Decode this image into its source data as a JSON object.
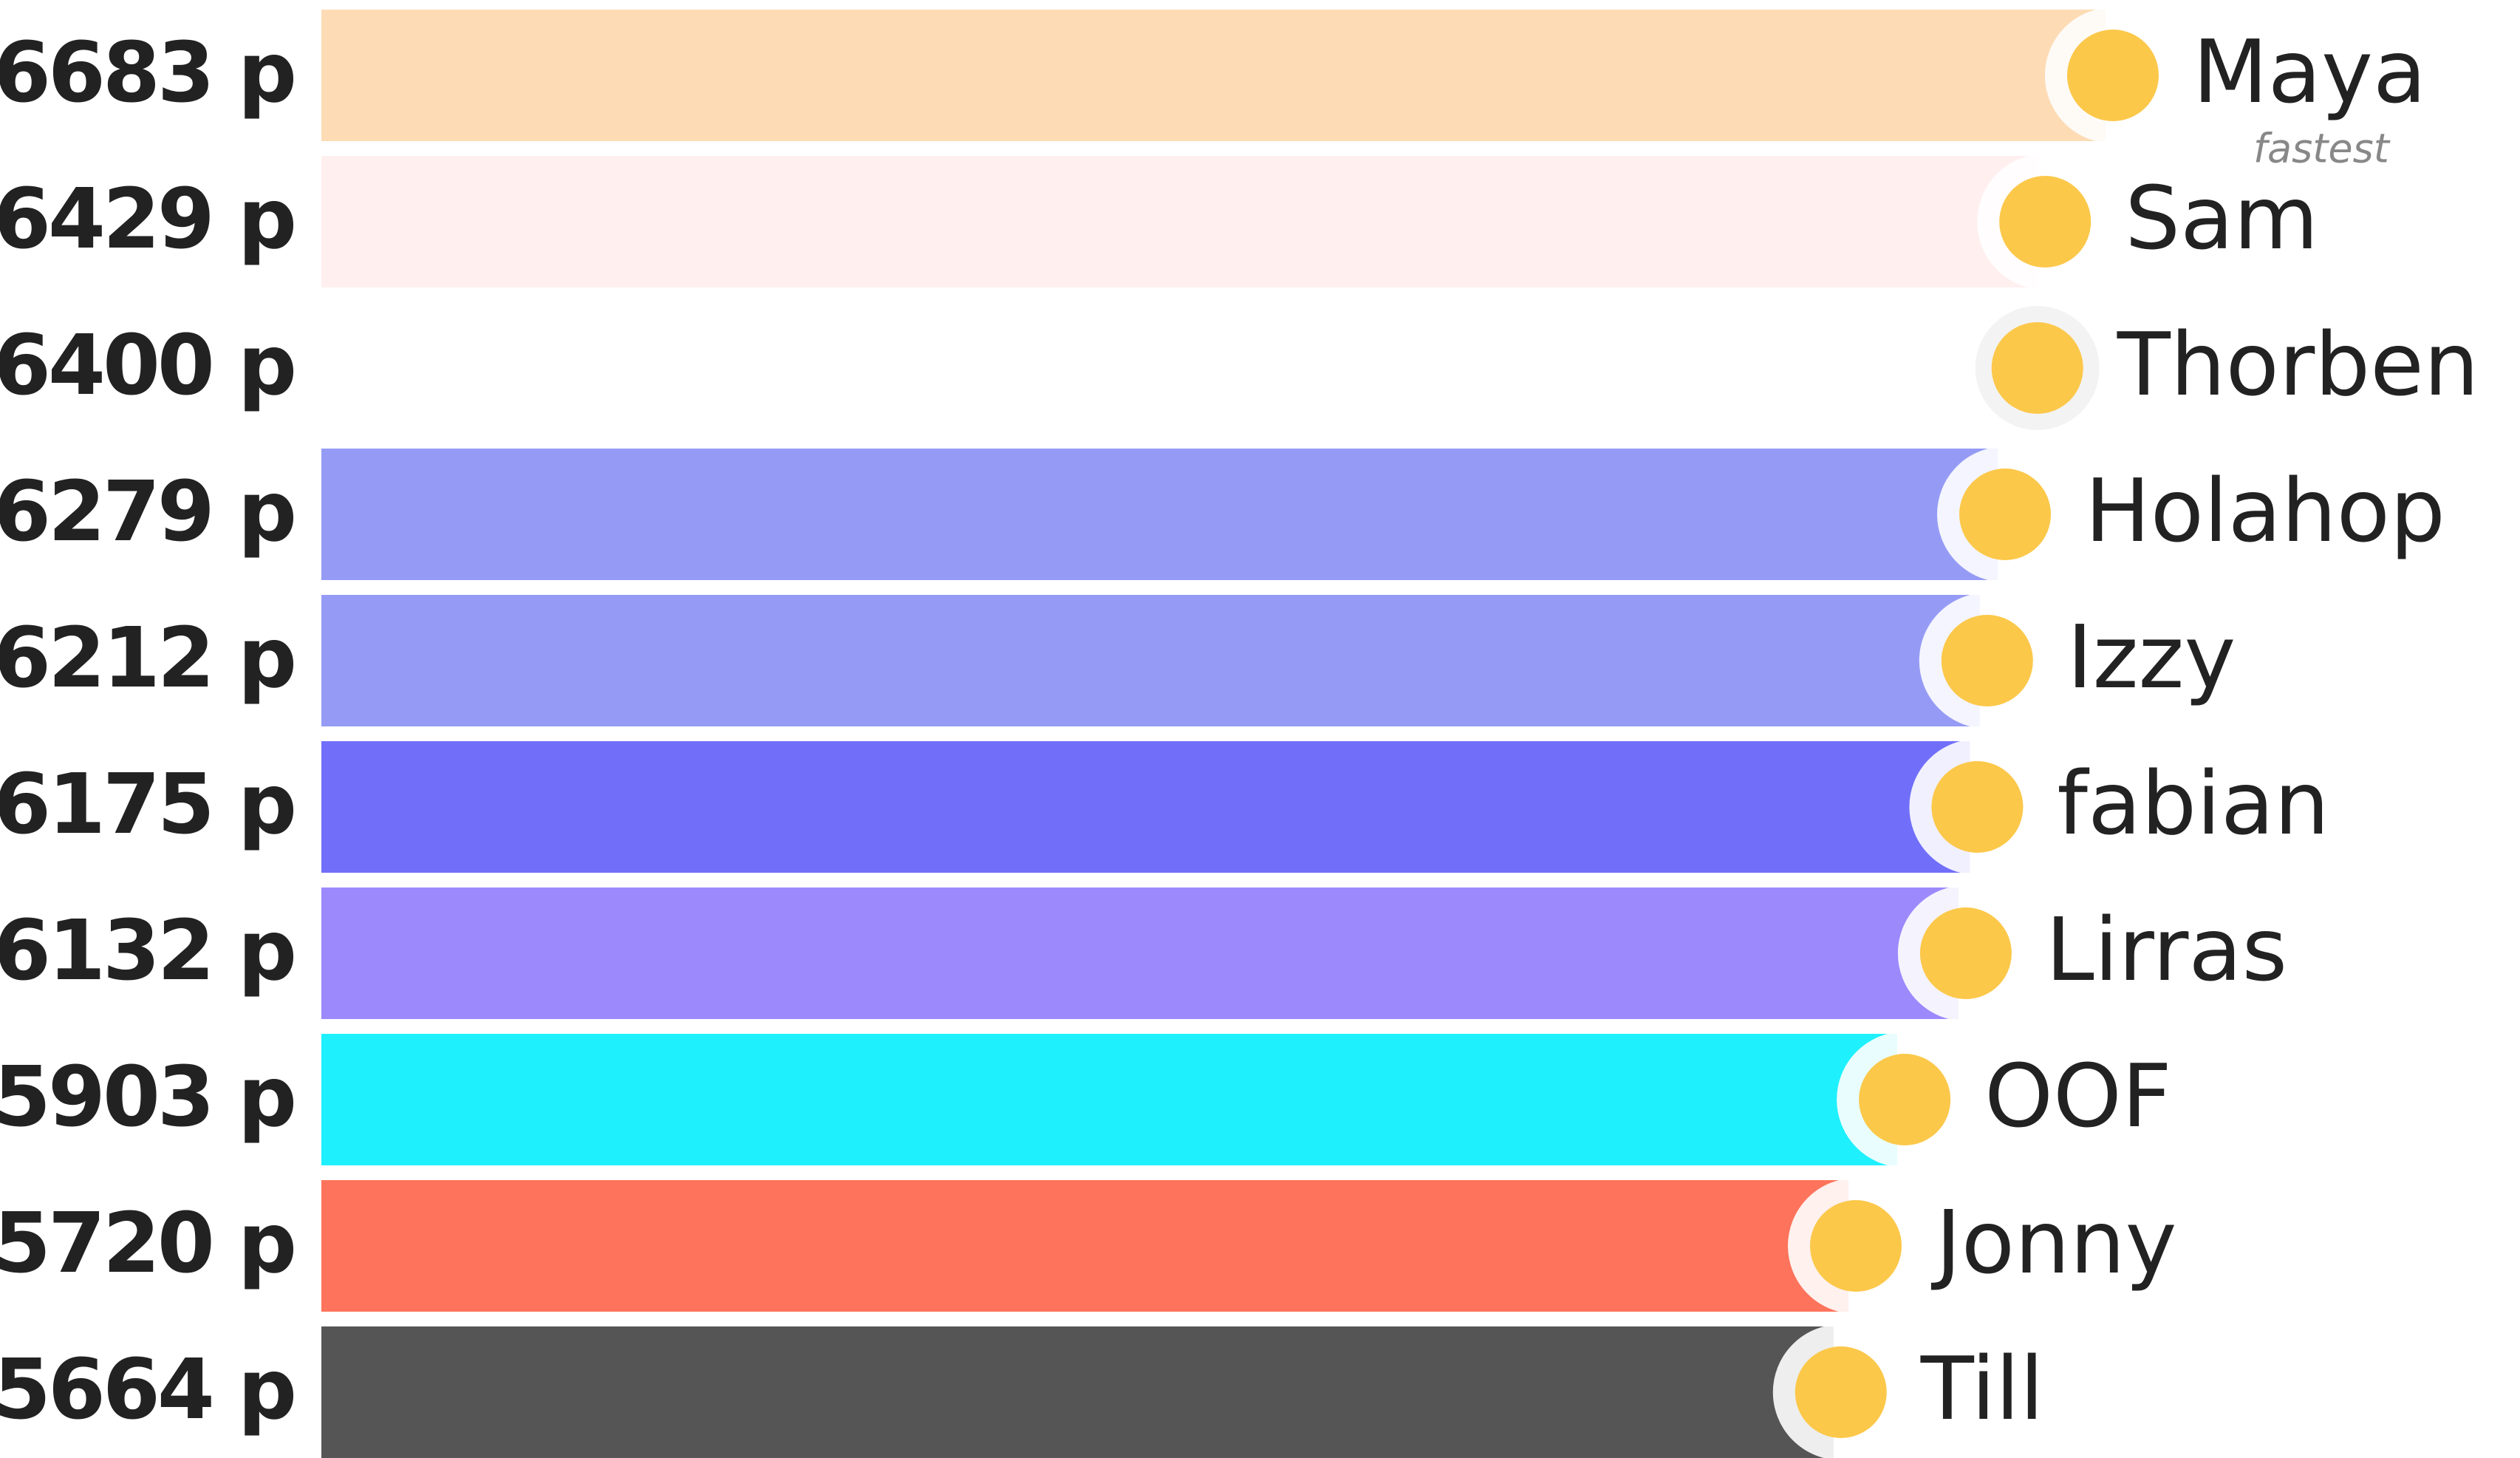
{
  "chart_data": {
    "type": "bar",
    "categories": [
      "Maya",
      "Sam",
      "Thorben",
      "Holahop",
      "Izzy",
      "fabian",
      "Lirras",
      "OOF",
      "Jonny",
      "Till"
    ],
    "values": [
      6683,
      6429,
      6400,
      6279,
      6212,
      6175,
      6132,
      5903,
      5720,
      5664
    ],
    "value_labels": [
      "6683 p",
      "6429 p",
      "6400 p",
      "6279 p",
      "6212 p",
      "6175 p",
      "6132 p",
      "5903 p",
      "5720 p",
      "5664 p"
    ],
    "colors": [
      "#fddcb5",
      "#fff0ef",
      "#ffffff",
      "#959bf5",
      "#959bf5",
      "#716ff9",
      "#9c89fc",
      "#1ef0fe",
      "#fe735b",
      "#555555"
    ],
    "annotation": "fastest"
  }
}
